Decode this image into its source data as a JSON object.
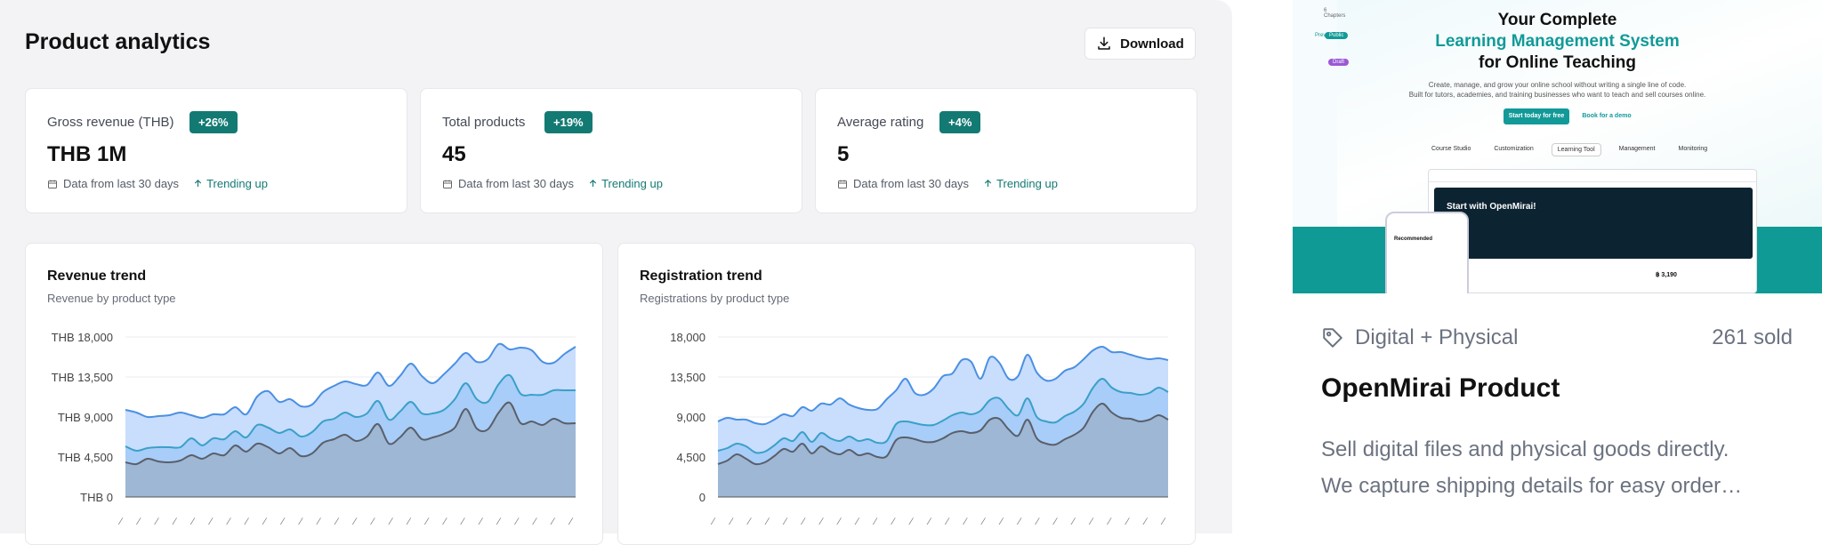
{
  "page": {
    "title": "Product analytics",
    "download_label": "Download"
  },
  "stats": [
    {
      "label": "Gross revenue (THB)",
      "badge": "+26%",
      "value": "THB 1M",
      "meta": "Data from last 30 days",
      "trend": "Trending up"
    },
    {
      "label": "Total products",
      "badge": "+19%",
      "value": "45",
      "meta": "Data from last 30 days",
      "trend": "Trending up"
    },
    {
      "label": "Average rating",
      "badge": "+4%",
      "value": "5",
      "meta": "Data from last 30 days",
      "trend": "Trending up"
    }
  ],
  "chart_data": [
    {
      "type": "area",
      "title": "Revenue trend",
      "subtitle": "Revenue by product type",
      "yticks": [
        "THB 0",
        "THB 4,500",
        "THB 9,000",
        "THB 13,500",
        "THB 18,000"
      ],
      "ylim": [
        0,
        18000
      ],
      "grid": true,
      "stacked": true,
      "series": [
        {
          "values": [
            3900,
            3700,
            4300,
            4000,
            3900,
            4100,
            4700,
            4300,
            4900,
            4700,
            5800,
            5100,
            6000,
            5600,
            4900,
            5500,
            4600,
            4900,
            6100,
            6500,
            7000,
            6300,
            6800,
            8200,
            6000,
            6700,
            7800,
            6500,
            6700,
            7100,
            7800,
            9900,
            7700,
            7600,
            9500,
            10600,
            8300,
            8500,
            8100,
            8800,
            8300,
            8300
          ]
        },
        {
          "values": [
            1800,
            1500,
            1200,
            1600,
            1700,
            1500,
            1900,
            1500,
            1700,
            1800,
            1600,
            1600,
            2100,
            2200,
            2300,
            2100,
            2200,
            2400,
            2400,
            2300,
            2500,
            2700,
            2600,
            2600,
            2700,
            2900,
            2900,
            2900,
            2700,
            2700,
            3200,
            2900,
            3300,
            3100,
            3200,
            3100,
            3300,
            3000,
            3400,
            3200,
            3700,
            3700
          ]
        },
        {
          "values": [
            4100,
            4300,
            3500,
            3500,
            3600,
            3900,
            2600,
            3100,
            2700,
            2800,
            2700,
            2600,
            3200,
            4100,
            3500,
            3400,
            3400,
            3100,
            3300,
            3700,
            3500,
            3700,
            3200,
            3200,
            3800,
            4000,
            4300,
            4200,
            3400,
            4000,
            4000,
            3400,
            4200,
            4800,
            4500,
            2900,
            5200,
            5000,
            3700,
            3100,
            4100,
            4900
          ]
        }
      ]
    },
    {
      "type": "area",
      "title": "Registration trend",
      "subtitle": "Registrations by product type",
      "yticks": [
        "0",
        "4,500",
        "9,000",
        "13,500",
        "18,000"
      ],
      "ylim": [
        0,
        18000
      ],
      "grid": true,
      "stacked": true,
      "series": [
        {
          "values": [
            3700,
            4100,
            4800,
            4300,
            3700,
            3900,
            4600,
            5400,
            5100,
            6000,
            4900,
            5700,
            5100,
            4800,
            5300,
            4700,
            4900,
            4500,
            4600,
            6400,
            6700,
            6500,
            6200,
            6200,
            6600,
            7200,
            7400,
            7200,
            7500,
            8700,
            8800,
            7600,
            6900,
            8700,
            6600,
            6000,
            5900,
            6500,
            7000,
            7800,
            9600,
            10500,
            9500,
            8900,
            8800,
            8500,
            8700,
            9200,
            8700
          ]
        },
        {
          "values": [
            1500,
            1400,
            1200,
            1400,
            1300,
            1200,
            1200,
            1200,
            1200,
            1300,
            1300,
            1500,
            1500,
            1500,
            1500,
            1600,
            1600,
            1600,
            1700,
            1800,
            1800,
            1800,
            1900,
            1900,
            2000,
            2000,
            2100,
            2100,
            2200,
            2200,
            2300,
            2300,
            2300,
            2400,
            2400,
            2500,
            2500,
            2600,
            2600,
            2700,
            2700,
            2800,
            2800,
            2900,
            2900,
            3000,
            3000,
            3100,
            3100
          ]
        },
        {
          "values": [
            3300,
            3400,
            2700,
            3000,
            3300,
            3100,
            2900,
            2700,
            2800,
            2800,
            3500,
            3300,
            3800,
            4800,
            3600,
            3700,
            3300,
            3800,
            4700,
            3800,
            4800,
            3400,
            3400,
            4100,
            5000,
            4700,
            5900,
            5900,
            3600,
            4800,
            4000,
            3400,
            4400,
            4900,
            5000,
            4600,
            4900,
            5100,
            5000,
            5000,
            4200,
            3600,
            4000,
            4500,
            4300,
            4200,
            3800,
            3300,
            3600
          ]
        }
      ]
    }
  ],
  "product": {
    "hero": {
      "line1": "Your Complete",
      "line2": "Learning Management System",
      "line3": "for Online Teaching",
      "sub1": "Create, manage, and grow your online school without writing a single line of code.",
      "sub2": "Built for tutors, academies, and training businesses who want to teach and sell courses online.",
      "cta_primary": "Start today for free",
      "cta_secondary": "Book for a demo",
      "tabs": [
        "Course Studio",
        "Customization",
        "Learning Tool",
        "Management",
        "Monitoring"
      ],
      "shot_title": "Start with OpenMirai!",
      "phone_title": "Recommended",
      "price": "฿ 3,190",
      "chips": [
        "Preview",
        "Public",
        "Draft",
        "6 Chapters"
      ]
    },
    "tag": "Digital + Physical",
    "sold": "261 sold",
    "name": "OpenMirai Product",
    "desc_line1": "Sell digital files and physical goods directly.",
    "desc_line2": "We capture shipping details for easy order…"
  },
  "colors": {
    "accent": "#137a73",
    "series_light": "#c9ddfd",
    "series_mid": "#a7cdf8",
    "series_dark": "#9db7d5",
    "line_blue": "#4a90e2",
    "line_teal": "#3aa0c8",
    "line_dark": "#5a5f6a"
  }
}
